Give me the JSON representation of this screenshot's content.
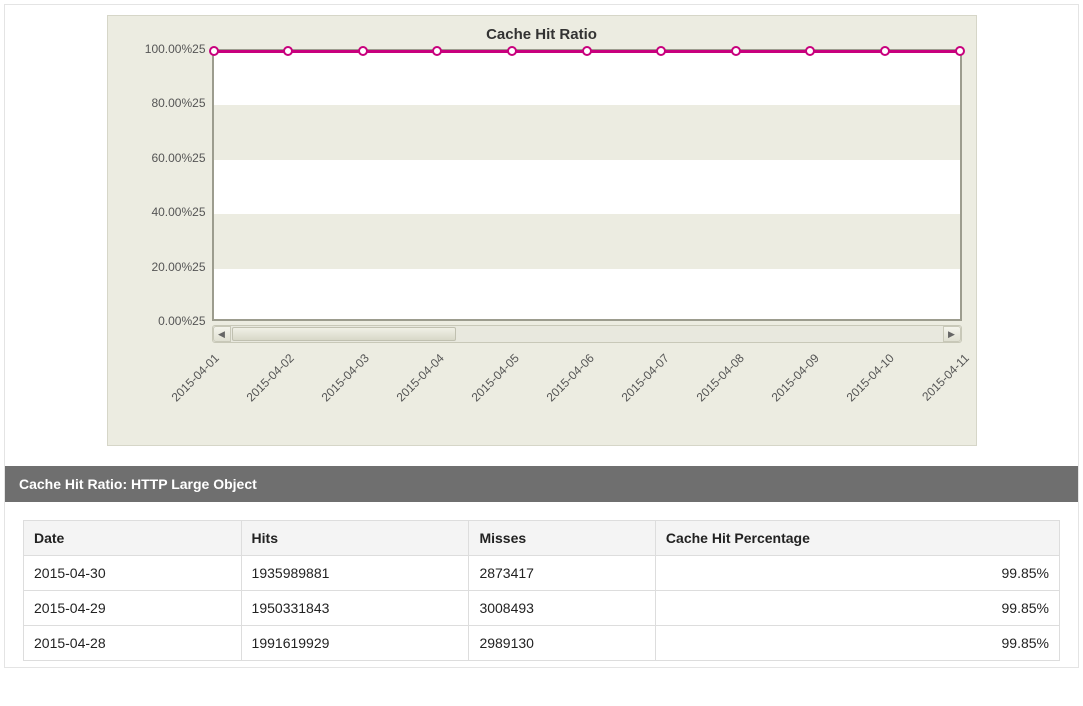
{
  "chart": {
    "type": "line",
    "title": "Cache Hit Ratio",
    "title_fontsize": 15,
    "title_color": "#333333",
    "panel_background": "#ecece1",
    "panel_border": "#d6d6c8",
    "plot_background": "#ffffff",
    "plot_border_color": "#9c9c8e",
    "band_color": "#ecece1",
    "axis_label_color": "#555555",
    "axis_label_fontsize": 12,
    "ylim": [
      0,
      100
    ],
    "ytick_step": 20,
    "yticks": [
      "0.00%25",
      "20.00%25",
      "40.00%25",
      "60.00%25",
      "80.00%25",
      "100.00%25"
    ],
    "x_categories": [
      "2015-04-01",
      "2015-04-02",
      "2015-04-03",
      "2015-04-04",
      "2015-04-05",
      "2015-04-06",
      "2015-04-07",
      "2015-04-08",
      "2015-04-09",
      "2015-04-10",
      "2015-04-11"
    ],
    "series": {
      "name": "Cache Hit Ratio",
      "color": "#c8007d",
      "line_width": 3,
      "marker_style": "circle",
      "marker_size": 10,
      "marker_fill": "#ffffff",
      "marker_border": "#c8007d",
      "values": [
        100,
        100,
        100,
        100,
        100,
        100,
        100,
        100,
        100,
        100,
        100
      ]
    },
    "scrollbar": {
      "track_color": "#e8e8de",
      "thumb_color": "#d8d8c8",
      "button_color": "#e0e0d2",
      "thumb_position_pct": 0,
      "thumb_width_pct": 30
    }
  },
  "section_title": "Cache Hit Ratio: HTTP Large Object",
  "table": {
    "columns": [
      "Date",
      "Hits",
      "Misses",
      "Cache Hit Percentage"
    ],
    "column_align": [
      "left",
      "left",
      "left",
      "right"
    ],
    "header_bg": "#f4f4f4",
    "border_color": "#dddddd",
    "rows": [
      [
        "2015-04-30",
        "1935989881",
        "2873417",
        "99.85%"
      ],
      [
        "2015-04-29",
        "1950331843",
        "3008493",
        "99.85%"
      ],
      [
        "2015-04-28",
        "1991619929",
        "2989130",
        "99.85%"
      ]
    ]
  }
}
